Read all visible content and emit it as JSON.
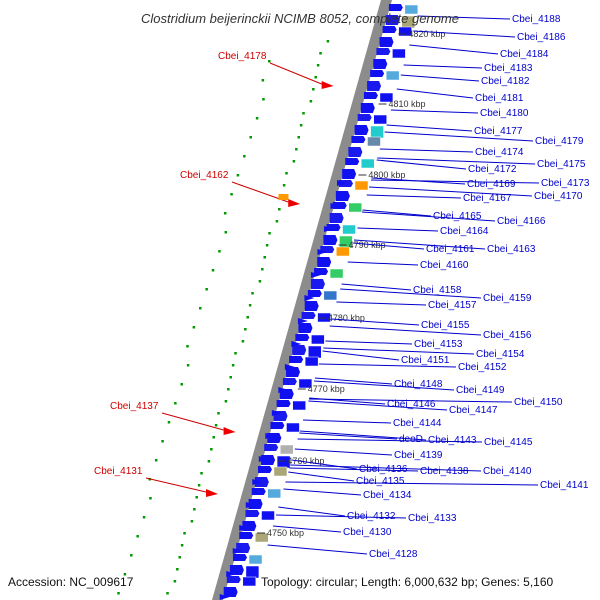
{
  "title": "Clostridium beijerinckii NCIMB 8052, complete genome",
  "accession": "Accession: NC_009617",
  "topology": "Topology: circular; Length: 6,000,632 bp; Genes: 5,160",
  "colors": {
    "label_blue": "#0000cc",
    "label_red": "#cc0000",
    "backbone": "#8c8c8c",
    "gene_blue": "#1010f0",
    "dot_green": "#009900"
  },
  "kbp_marks": [
    "4820 kbp",
    "4810 kbp",
    "4800 kbp",
    "4790 kbp",
    "4780 kbp",
    "4770 kbp",
    "4760 kbp",
    "4750 kbp"
  ],
  "highlighted_genes": [
    "Cbei_4178",
    "Cbei_4162",
    "Cbei_4137",
    "Cbei_4131"
  ],
  "gene_labels": [
    "Cbei_4188",
    "Cbei_4186",
    "Cbei_4184",
    "Cbei_4183",
    "Cbei_4182",
    "Cbei_4181",
    "Cbei_4180",
    "Cbei_4177",
    "Cbei_4179",
    "Cbei_4174",
    "Cbei_4175",
    "Cbei_4172",
    "Cbei_4173",
    "Cbei_4169",
    "Cbei_4170",
    "Cbei_4167",
    "Cbei_4165",
    "Cbei_4166",
    "Cbei_4164",
    "Cbei_4161",
    "Cbei_4163",
    "Cbei_4160",
    "Cbei_4158",
    "Cbei_4159",
    "Cbei_4157",
    "Cbei_4155",
    "Cbei_4156",
    "Cbei_4153",
    "Cbei_4154",
    "Cbei_4151",
    "Cbei_4152",
    "Cbei_4148",
    "Cbei_4149",
    "Cbei_4150",
    "Cbei_4146",
    "Cbei_4147",
    "Cbei_4144",
    "deoD",
    "Cbei_4143",
    "Cbei_4145",
    "Cbei_4139",
    "Cbei_4136",
    "Cbei_4138",
    "Cbei_4140",
    "Cbei_4135",
    "Cbei_4141",
    "Cbei_4134",
    "Cbei_4132",
    "Cbei_4133",
    "Cbei_4130",
    "Cbei_4128"
  ]
}
